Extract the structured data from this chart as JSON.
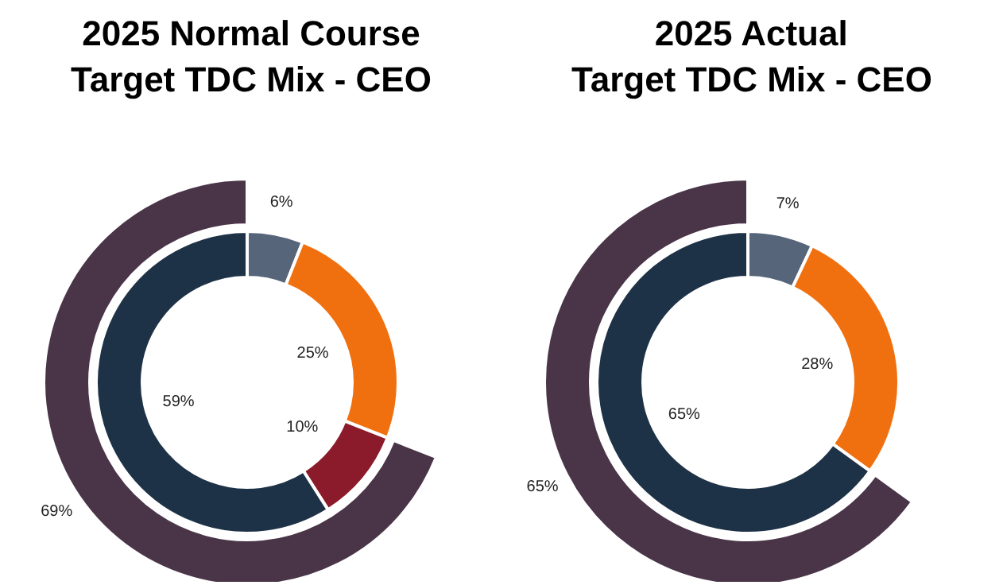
{
  "chart_data": [
    {
      "type": "donut",
      "title": "2025 Normal Course\nTarget TDC Mix - CEO",
      "categories": [
        null,
        null,
        null,
        null
      ],
      "data_labels": true,
      "series": [
        {
          "values": [
            6,
            25,
            10,
            59
          ],
          "colors": [
            "#56657a",
            "#f07010",
            "#8b1a2a",
            "#1e3247"
          ],
          "value_labels": [
            "6%",
            "25%",
            "10%",
            "59%"
          ]
        },
        {
          "values": [
            null,
            null,
            null,
            69
          ],
          "colors": [
            null,
            null,
            null,
            "#4a3548"
          ],
          "value_labels": [
            null,
            null,
            null,
            "69%"
          ]
        }
      ]
    },
    {
      "type": "donut",
      "title": "2025 Actual\nTarget TDC Mix - CEO",
      "categories": [
        null,
        null,
        null
      ],
      "data_labels": true,
      "series": [
        {
          "values": [
            7,
            28,
            65
          ],
          "colors": [
            "#56657a",
            "#f07010",
            "#1e3247"
          ],
          "value_labels": [
            "7%",
            "28%",
            "65%"
          ]
        },
        {
          "values": [
            null,
            null,
            65
          ],
          "colors": [
            null,
            null,
            "#4a3548"
          ],
          "value_labels": [
            null,
            null,
            "65%"
          ]
        }
      ]
    }
  ]
}
